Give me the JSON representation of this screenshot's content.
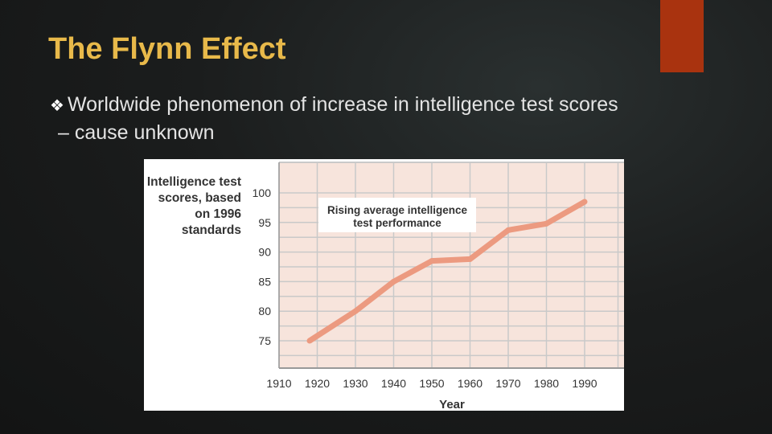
{
  "slide": {
    "title": "The Flynn Effect",
    "bullet_line1": "Worldwide phenomenon of increase in intelligence test scores",
    "bullet_line2": "– cause unknown",
    "bullet_icon": "diamond-bullet-icon"
  },
  "colors": {
    "title": "#e8b94a",
    "accent": "#a9330f",
    "line": "#ec9a80",
    "plot_bg": "#f7e4dc",
    "grid": "#c9c9c9"
  },
  "chart_data": {
    "type": "line",
    "title": "",
    "ylabel_lines": [
      "Intelligence test",
      "scores, based",
      "on 1996",
      "standards"
    ],
    "xlabel": "Year",
    "annotation_lines": [
      "Rising average intelligence",
      "test performance"
    ],
    "xlim": [
      1910,
      1990
    ],
    "ylim": [
      70,
      102
    ],
    "x_ticks": [
      1910,
      1920,
      1930,
      1940,
      1950,
      1960,
      1970,
      1980,
      1990
    ],
    "y_ticks": [
      75,
      80,
      85,
      90,
      95,
      100
    ],
    "grid": true,
    "series": [
      {
        "x": [
          1918,
          1930,
          1940,
          1950,
          1960,
          1970,
          1980,
          1990
        ],
        "values": [
          75,
          80,
          85,
          88.5,
          88.8,
          93.7,
          94.8,
          98.5
        ]
      }
    ]
  }
}
